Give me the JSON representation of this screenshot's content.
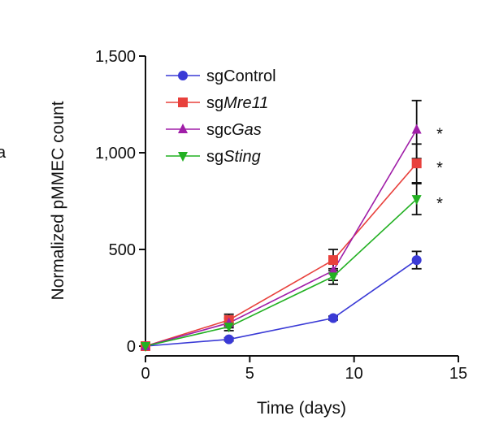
{
  "chart_data": {
    "type": "line",
    "xlabel": "Time (days)",
    "ylabel": "Normalized pMMEC count",
    "xlim": [
      0,
      15
    ],
    "ylim": [
      0,
      1500
    ],
    "x_ticks": [
      "0",
      "5",
      "10",
      "15"
    ],
    "y_ticks": [
      "0",
      "500",
      "1,000",
      "1,500"
    ],
    "x": [
      0,
      4,
      9,
      13
    ],
    "legend_position": "top-left",
    "series": [
      {
        "name_prefix": "sg",
        "name_italic": "Control",
        "italic": false,
        "marker": "circle",
        "color": "#3a3ad6",
        "values": [
          0,
          35,
          145,
          445
        ],
        "errors": [
          0,
          8,
          10,
          45
        ],
        "significance": ""
      },
      {
        "name_prefix": "sg",
        "name_italic": "Mre11",
        "italic": true,
        "marker": "square",
        "color": "#e8413c",
        "values": [
          0,
          135,
          445,
          945
        ],
        "errors": [
          0,
          30,
          55,
          100
        ],
        "significance": "*"
      },
      {
        "name_prefix": "sgc",
        "name_italic": "Gas",
        "italic": true,
        "marker": "triangle-up",
        "color": "#a01ea8",
        "values": [
          0,
          120,
          390,
          1120
        ],
        "errors": [
          0,
          25,
          50,
          150
        ],
        "significance": "*"
      },
      {
        "name_prefix": "sg",
        "name_italic": "Sting",
        "italic": true,
        "marker": "triangle-down",
        "color": "#22b022",
        "values": [
          0,
          100,
          360,
          760
        ],
        "errors": [
          0,
          20,
          40,
          80
        ],
        "significance": "*"
      }
    ]
  },
  "panel_fragment": "a"
}
